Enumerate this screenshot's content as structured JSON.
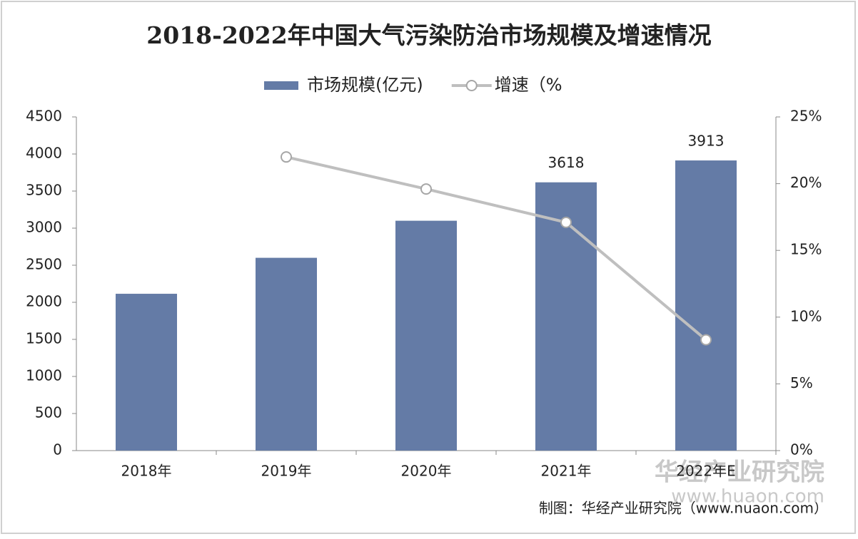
{
  "chart_data": {
    "type": "bar",
    "title": "2018-2022年中国大气污染防治市场规模及增速情况",
    "categories": [
      "2018年",
      "2019年",
      "2020年",
      "2021年",
      "2022年E"
    ],
    "series": [
      {
        "name": "市场规模(亿元)",
        "type": "bar",
        "color": "#647ba6",
        "values": [
          2115,
          2600,
          3100,
          3618,
          3913
        ],
        "value_labels": [
          null,
          null,
          null,
          "3618",
          "3913"
        ]
      },
      {
        "name": "增速（%",
        "type": "line",
        "axis": "y2",
        "color": "#bfbfbf",
        "values": [
          null,
          22.0,
          19.6,
          17.1,
          8.3
        ]
      }
    ],
    "ylim": [
      0,
      4500
    ],
    "yticks": [
      0,
      500,
      1000,
      1500,
      2000,
      2500,
      3000,
      3500,
      4000,
      4500
    ],
    "y2lim": [
      0,
      25
    ],
    "y2ticks": [
      {
        "value": 0,
        "label": "0%"
      },
      {
        "value": 5,
        "label": "5%"
      },
      {
        "value": 10,
        "label": "10%"
      },
      {
        "value": 15,
        "label": "15%"
      },
      {
        "value": 20,
        "label": "20%"
      },
      {
        "value": 25,
        "label": "25%"
      }
    ],
    "legend": "top",
    "source": "制图：华经产业研究院（www.nuaon.com）",
    "watermark": [
      "华经产业研究院",
      "www.huaon.com"
    ]
  }
}
